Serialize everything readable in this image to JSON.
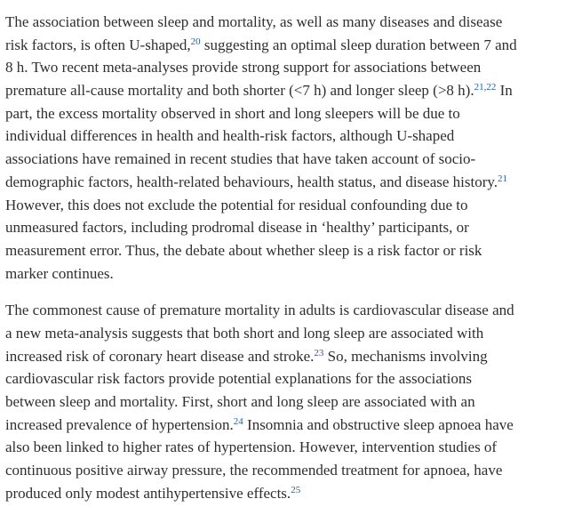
{
  "paragraphs": [
    {
      "lines": [
        [
          {
            "text": "The association between sleep and mortality, as well as many diseases and disease"
          }
        ],
        [
          {
            "text": "risk factors, is often U-shaped,"
          },
          {
            "sup": "20"
          },
          {
            "text": " suggesting an optimal sleep duration between 7 and"
          }
        ],
        [
          {
            "text": "8 h. Two recent meta-analyses provide strong support for associations between"
          }
        ],
        [
          {
            "text": "premature all-cause mortality and both shorter (<7 h) and longer sleep (>8 h)."
          },
          {
            "sup": "21,22"
          },
          {
            "text": " In"
          }
        ],
        [
          {
            "text": "part, the excess mortality observed in short and long sleepers will be due to"
          }
        ],
        [
          {
            "text": "individual differences in health and health-risk factors, although U-shaped"
          }
        ],
        [
          {
            "text": "associations have remained in recent studies that have taken account of socio-"
          }
        ],
        [
          {
            "text": "demographic factors, health-related behaviours, health status, and disease history."
          },
          {
            "sup": "21"
          }
        ],
        [
          {
            "text": "However, this does not exclude the potential for residual confounding due to"
          }
        ],
        [
          {
            "text": "unmeasured factors, including prodromal disease in ‘healthy’ participants, or"
          }
        ],
        [
          {
            "text": "measurement error. Thus, the debate about whether sleep is a risk factor or risk"
          }
        ],
        [
          {
            "text": "marker continues."
          }
        ]
      ]
    },
    {
      "lines": [
        [
          {
            "text": "The commonest cause of premature mortality in adults is cardiovascular disease and"
          }
        ],
        [
          {
            "text": "a new meta-analysis suggests that both short and long sleep are associated with"
          }
        ],
        [
          {
            "text": "increased risk of coronary heart disease and stroke."
          },
          {
            "sup": "23"
          },
          {
            "text": " So, mechanisms involving"
          }
        ],
        [
          {
            "text": "cardiovascular risk factors provide potential explanations for the associations"
          }
        ],
        [
          {
            "text": "between sleep and mortality. First, short and long sleep are associated with an"
          }
        ],
        [
          {
            "text": "increased prevalence of hypertension."
          },
          {
            "sup": "24"
          },
          {
            "text": " Insomnia and obstructive sleep apnoea have"
          }
        ],
        [
          {
            "text": "also been linked to higher rates of hypertension. However, intervention studies of"
          }
        ],
        [
          {
            "text": "continuous positive airway pressure, the recommended treatment for apnoea, have"
          }
        ],
        [
          {
            "text": "produced only modest antihypertensive effects."
          },
          {
            "sup": "25"
          }
        ]
      ]
    }
  ]
}
